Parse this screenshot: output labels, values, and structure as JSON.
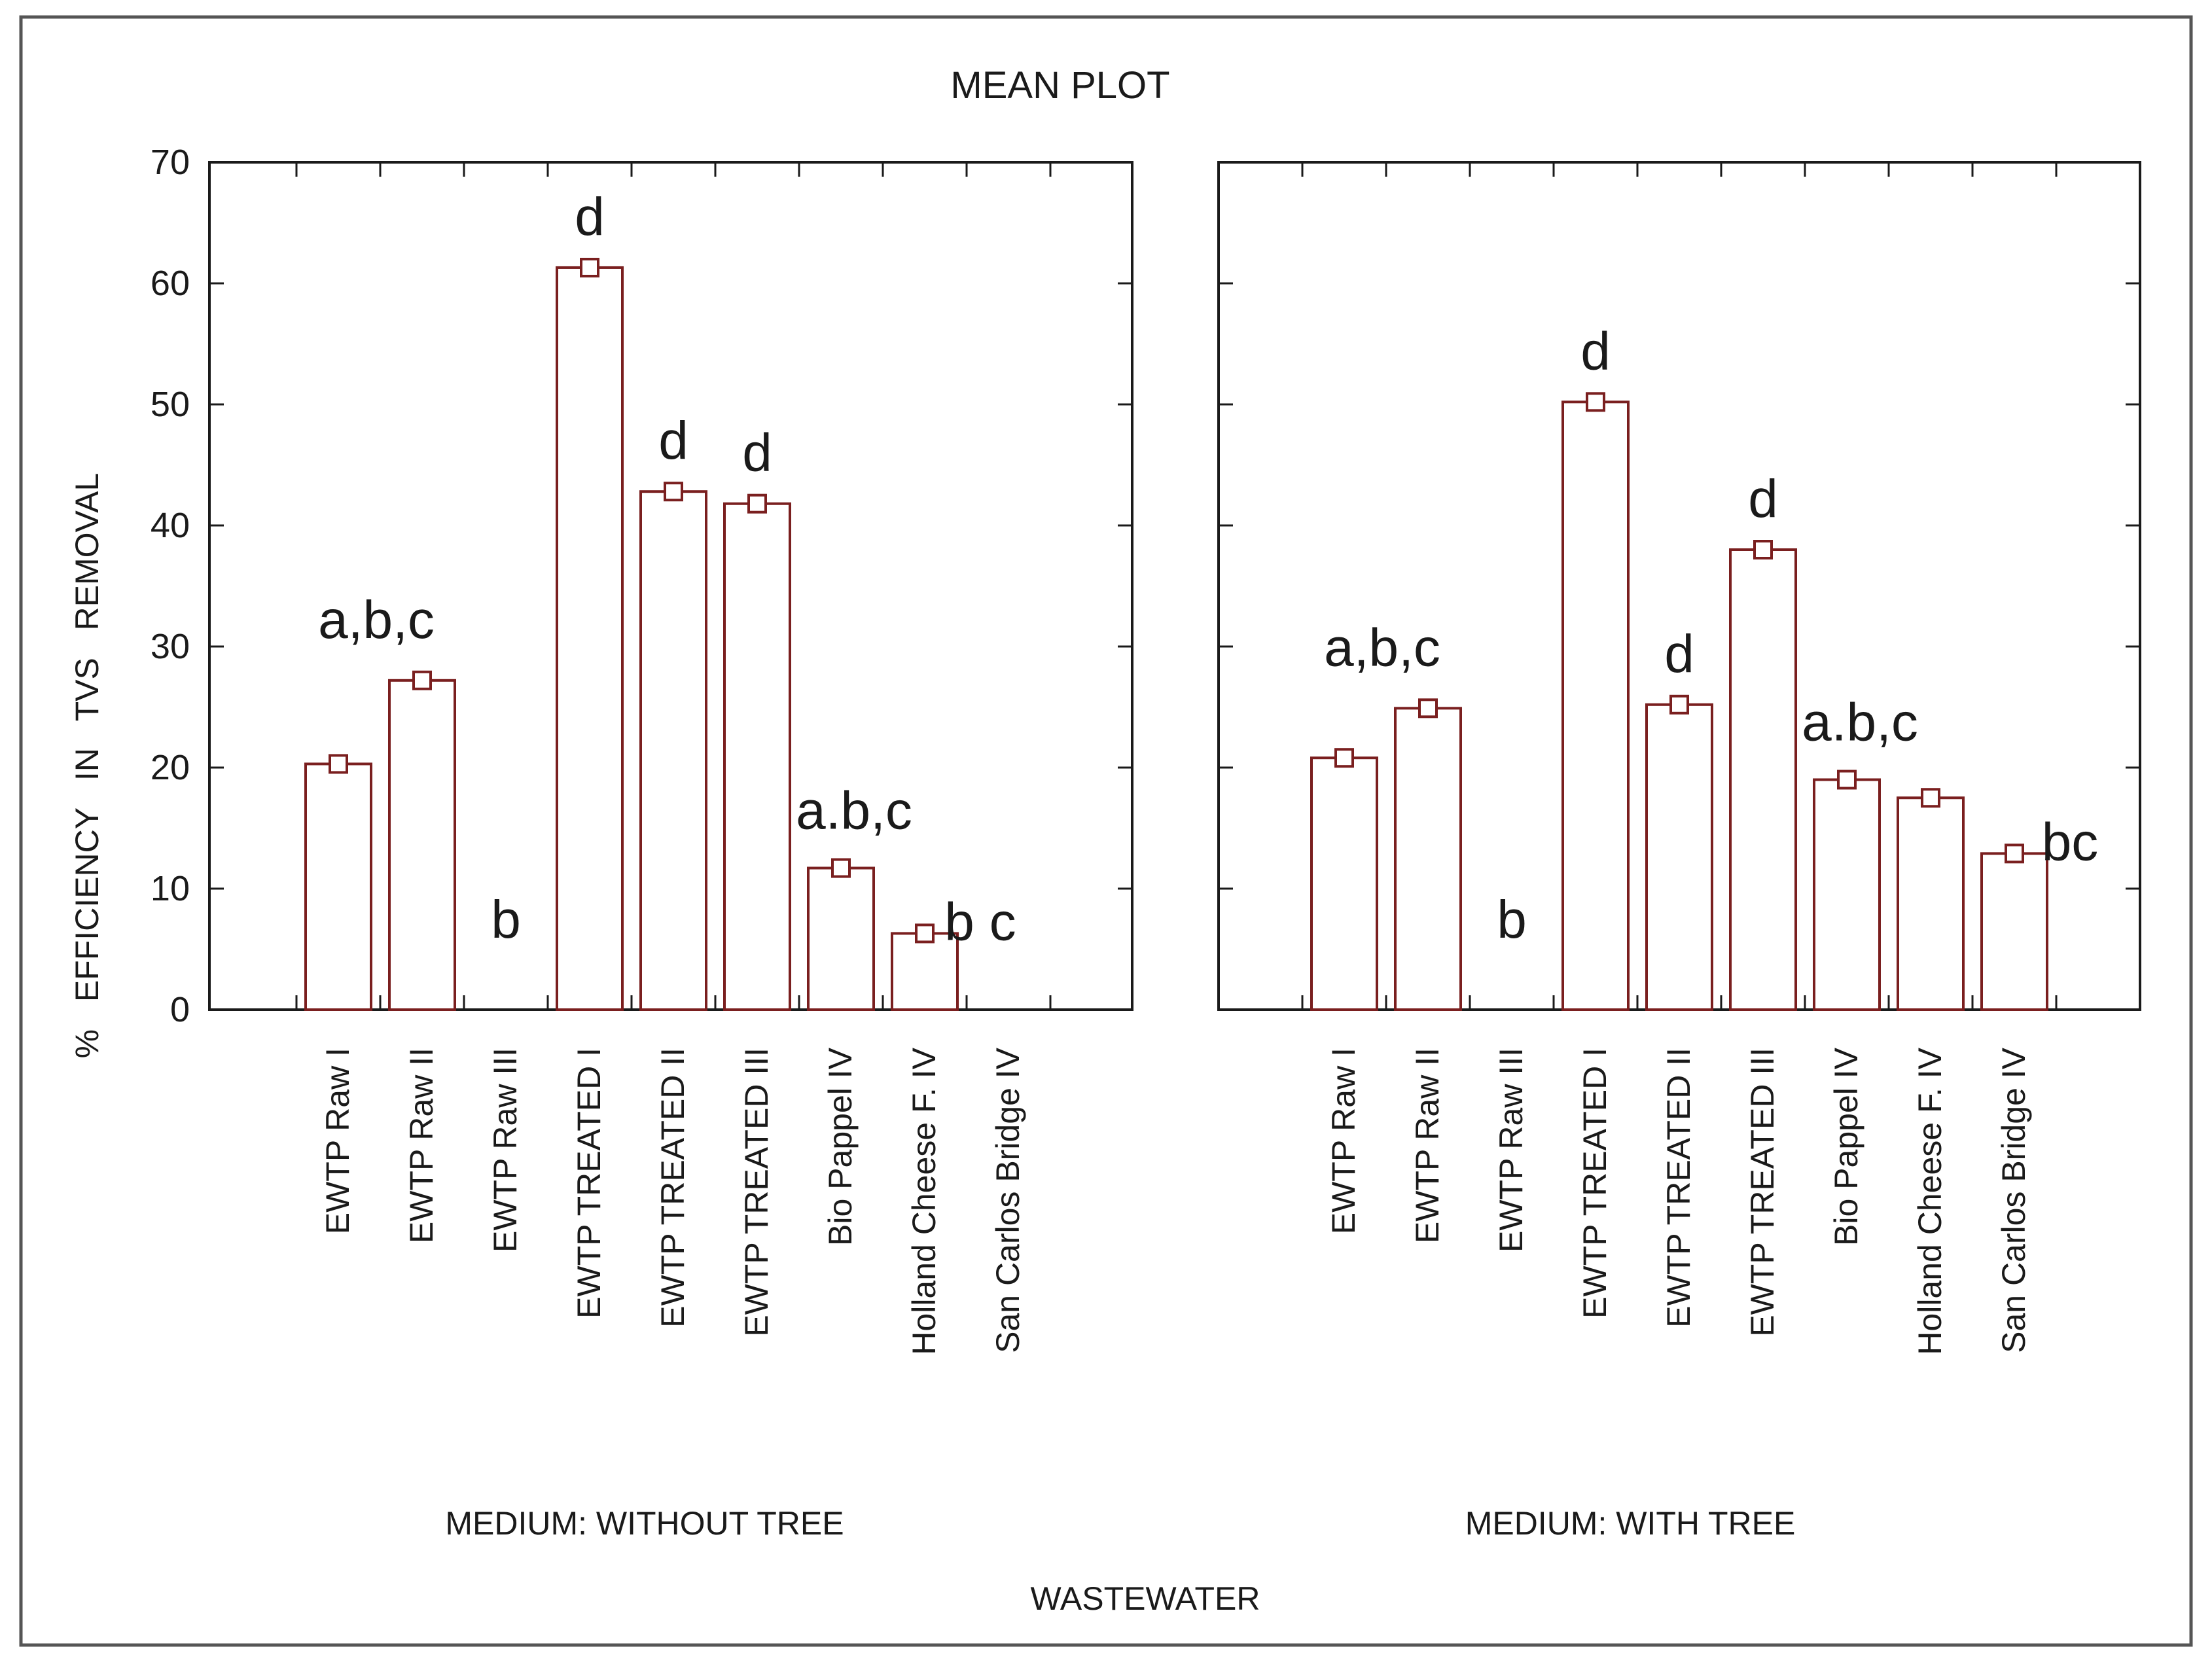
{
  "chart_data": {
    "type": "bar",
    "title": "MEAN PLOT",
    "ylabel": "%   EFFICIENCY   IN   TVS   REMOVAL",
    "xlabel": "WASTEWATER",
    "ylim": [
      0,
      70
    ],
    "yticks": [
      0,
      10,
      20,
      30,
      40,
      50,
      60,
      70
    ],
    "colors": {
      "bar_edge": "#7a1f1f",
      "bar_fill": "#ffffff",
      "frame": "#1a1a1a"
    },
    "categories": [
      "EWTP Raw I",
      "EWTP Raw II",
      "EWTP Raw III",
      "EWTP TREATED I",
      "EWTP TREATED II",
      "EWTP TREATED III",
      "Bio Pappel IV",
      "Holland Cheese F. IV",
      "San Carlos Bridge IV"
    ],
    "panels": [
      {
        "name": "MEDIUM: WITHOUT TREE",
        "values": [
          20.3,
          27.2,
          0,
          61.3,
          42.8,
          41.8,
          11.7,
          6.3,
          0
        ],
        "letters": [
          "",
          "a,b,c",
          "b",
          "d",
          "d",
          "d",
          "a.b,c",
          "b c",
          ""
        ]
      },
      {
        "name": "MEDIUM: WITH TREE",
        "values": [
          20.8,
          24.9,
          0,
          50.2,
          25.2,
          38.0,
          19.0,
          17.5,
          12.9
        ],
        "letters": [
          "",
          "a,b,c",
          "b",
          "d",
          "d",
          "d",
          "a.b,c",
          "",
          "bc"
        ]
      }
    ]
  }
}
